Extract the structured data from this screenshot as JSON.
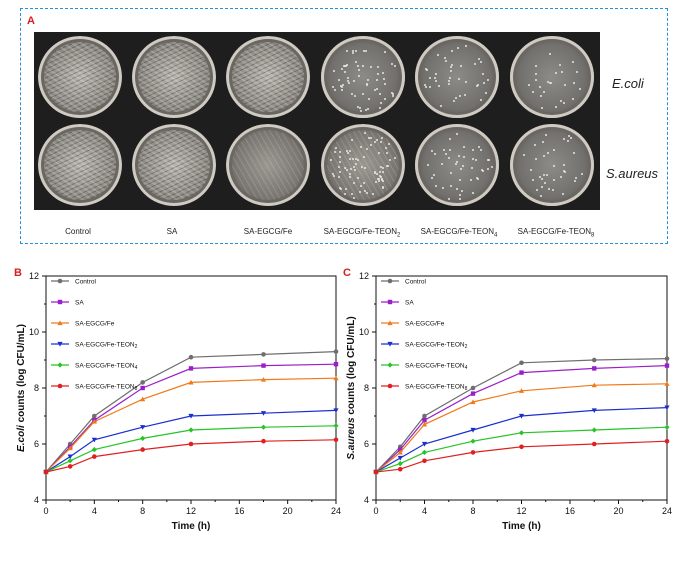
{
  "panel_a": {
    "letter": "A",
    "row_labels": [
      "E.coli",
      "S.aureus"
    ],
    "column_labels": [
      {
        "base": "Control",
        "sub": ""
      },
      {
        "base": "SA",
        "sub": ""
      },
      {
        "base": "SA-EGCG/Fe",
        "sub": ""
      },
      {
        "base": "SA-EGCG/Fe-TEON",
        "sub": "2"
      },
      {
        "base": "SA-EGCG/Fe-TEON",
        "sub": "4"
      },
      {
        "base": "SA-EGCG/Fe-TEON",
        "sub": "8"
      }
    ]
  },
  "chart_data": [
    {
      "panel": "B",
      "type": "line",
      "xlabel": "Time (h)",
      "ylabel_italic": "E.coli",
      "ylabel_rest": " counts (log CFU/mL)",
      "x": [
        0,
        2,
        4,
        8,
        12,
        18,
        24
      ],
      "xticks": [
        0,
        4,
        8,
        12,
        16,
        20,
        24
      ],
      "yticks": [
        4,
        6,
        8,
        10,
        12
      ],
      "xlim": [
        0,
        24
      ],
      "ylim": [
        4,
        12
      ],
      "series": [
        {
          "name": "Control",
          "sub": "",
          "color": "#6e6e6e",
          "marker": "circle",
          "values": [
            5.0,
            6.0,
            7.0,
            8.2,
            9.1,
            9.2,
            9.3
          ]
        },
        {
          "name": "SA",
          "sub": "",
          "color": "#9b1fc9",
          "marker": "square",
          "values": [
            5.0,
            5.9,
            6.85,
            8.0,
            8.7,
            8.8,
            8.85
          ]
        },
        {
          "name": "SA-EGCG/Fe",
          "sub": "",
          "color": "#f07a1a",
          "marker": "triangle-up",
          "values": [
            5.0,
            5.85,
            6.8,
            7.6,
            8.2,
            8.3,
            8.35
          ]
        },
        {
          "name": "SA-EGCG/Fe-TEON",
          "sub": "2",
          "color": "#1a2fcf",
          "marker": "triangle-down",
          "values": [
            5.0,
            5.55,
            6.15,
            6.6,
            7.0,
            7.1,
            7.2
          ]
        },
        {
          "name": "SA-EGCG/Fe-TEON",
          "sub": "4",
          "color": "#26c426",
          "marker": "diamond",
          "values": [
            5.0,
            5.4,
            5.8,
            6.2,
            6.5,
            6.6,
            6.65
          ]
        },
        {
          "name": "SA-EGCG/Fe-TEON",
          "sub": "8",
          "color": "#e02020",
          "marker": "circle",
          "values": [
            5.0,
            5.2,
            5.55,
            5.8,
            6.0,
            6.1,
            6.15
          ]
        }
      ]
    },
    {
      "panel": "C",
      "type": "line",
      "xlabel": "Time (h)",
      "ylabel_italic": "S.aureus",
      "ylabel_rest": " counts (log CFU/mL)",
      "x": [
        0,
        2,
        4,
        8,
        12,
        18,
        24
      ],
      "xticks": [
        0,
        4,
        8,
        12,
        16,
        20,
        24
      ],
      "yticks": [
        4,
        6,
        8,
        10,
        12
      ],
      "xlim": [
        0,
        24
      ],
      "ylim": [
        4,
        12
      ],
      "series": [
        {
          "name": "Control",
          "sub": "",
          "color": "#6e6e6e",
          "marker": "circle",
          "values": [
            5.0,
            5.9,
            7.0,
            8.0,
            8.9,
            9.0,
            9.05
          ]
        },
        {
          "name": "SA",
          "sub": "",
          "color": "#9b1fc9",
          "marker": "square",
          "values": [
            5.0,
            5.8,
            6.85,
            7.8,
            8.55,
            8.7,
            8.8
          ]
        },
        {
          "name": "SA-EGCG/Fe",
          "sub": "",
          "color": "#f07a1a",
          "marker": "triangle-up",
          "values": [
            5.0,
            5.7,
            6.7,
            7.5,
            7.9,
            8.1,
            8.15
          ]
        },
        {
          "name": "SA-EGCG/Fe-TEON",
          "sub": "2",
          "color": "#1a2fcf",
          "marker": "triangle-down",
          "values": [
            5.0,
            5.5,
            6.0,
            6.5,
            7.0,
            7.2,
            7.3
          ]
        },
        {
          "name": "SA-EGCG/Fe-TEON",
          "sub": "4",
          "color": "#26c426",
          "marker": "diamond",
          "values": [
            5.0,
            5.3,
            5.7,
            6.1,
            6.4,
            6.5,
            6.6
          ]
        },
        {
          "name": "SA-EGCG/Fe-TEON",
          "sub": "8",
          "color": "#e02020",
          "marker": "circle",
          "values": [
            5.0,
            5.1,
            5.4,
            5.7,
            5.9,
            6.0,
            6.1
          ]
        }
      ]
    }
  ]
}
